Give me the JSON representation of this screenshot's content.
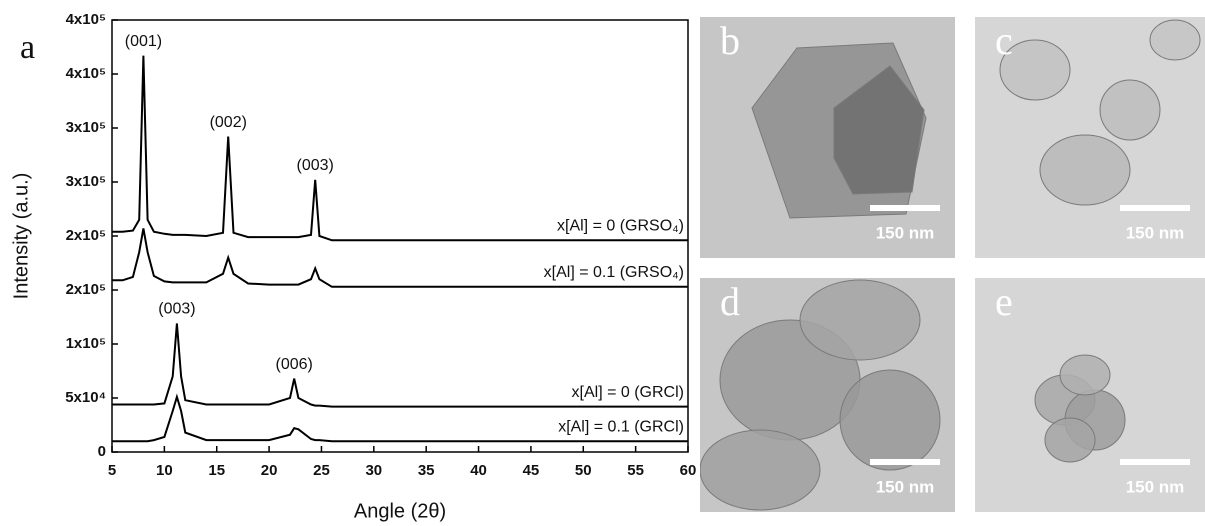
{
  "chart_data": {
    "type": "line",
    "panel_label": "a",
    "xlabel": "Angle (2θ)",
    "ylabel": "Intensity (a.u.)",
    "x": [
      5,
      6,
      7,
      7.6,
      8,
      8.4,
      9,
      10,
      10.8,
      11.2,
      11.6,
      12,
      14,
      15.6,
      16.1,
      16.6,
      18,
      20,
      22,
      22.4,
      22.8,
      24,
      24.4,
      24.8,
      26,
      30,
      40,
      50,
      60
    ],
    "series": [
      {
        "name": "x[Al] = 0 (GRSO₄)",
        "color": "#000000",
        "values": [
          204000,
          204000,
          205000,
          215000,
          367000,
          215000,
          204000,
          202000,
          201000,
          201000,
          201000,
          201000,
          200000,
          203000,
          292000,
          203000,
          199000,
          199000,
          199000,
          199000,
          199000,
          201000,
          252000,
          200000,
          196000,
          196000,
          196000,
          196000,
          196000
        ]
      },
      {
        "name": "x[Al] = 0.1 (GRSO₄)",
        "color": "#000000",
        "values": [
          159000,
          159000,
          162000,
          185000,
          207000,
          185000,
          163000,
          158000,
          157000,
          157000,
          157000,
          157000,
          157000,
          165000,
          180000,
          165000,
          156000,
          155000,
          155000,
          155000,
          155000,
          160000,
          170000,
          160000,
          153000,
          153000,
          153000,
          153000,
          153000
        ]
      },
      {
        "name": "x[Al] = 0 (GRCl)",
        "color": "#000000",
        "values": [
          44000,
          44000,
          44000,
          44000,
          44000,
          44000,
          44000,
          45000,
          70000,
          119000,
          70000,
          48000,
          44000,
          44000,
          44000,
          44000,
          44000,
          44000,
          50000,
          68000,
          50000,
          44000,
          43000,
          43000,
          42000,
          42000,
          42000,
          42000,
          42000
        ]
      },
      {
        "name": "x[Al] = 0.1 (GRCl)",
        "color": "#000000",
        "values": [
          10000,
          10000,
          10000,
          10000,
          10000,
          10000,
          11000,
          14000,
          38000,
          51000,
          38000,
          18000,
          11000,
          11000,
          11000,
          11000,
          11000,
          11000,
          16000,
          22000,
          21000,
          12000,
          11000,
          11000,
          10000,
          10000,
          10000,
          10000,
          10000
        ]
      }
    ],
    "annotations": [
      {
        "text": "(001)",
        "x": 8
      },
      {
        "text": "(002)",
        "x": 16.1
      },
      {
        "text": "(003)",
        "x": 24.4
      },
      {
        "text": "(003)",
        "x": 11.2
      },
      {
        "text": "(006)",
        "x": 22.4
      }
    ],
    "xlim": [
      5,
      60
    ],
    "xticks": [
      5,
      10,
      15,
      20,
      25,
      30,
      35,
      40,
      45,
      50,
      55,
      60
    ],
    "ylim": [
      0,
      400000
    ],
    "yticks": [
      {
        "value": 0,
        "label": "0"
      },
      {
        "value": 50000,
        "label": "5x10⁴"
      },
      {
        "value": 100000,
        "label": "1x10⁵"
      },
      {
        "value": 150000,
        "label": "2x10⁵"
      },
      {
        "value": 200000,
        "label": "2x10⁵"
      },
      {
        "value": 250000,
        "label": "3x10⁵"
      },
      {
        "value": 300000,
        "label": "3x10⁵"
      },
      {
        "value": 350000,
        "label": "4x10⁵"
      },
      {
        "value": 400000,
        "label": "4x10⁵"
      }
    ]
  },
  "panels": [
    {
      "label": "b",
      "scale": "150 nm"
    },
    {
      "label": "c",
      "scale": "150 nm"
    },
    {
      "label": "d",
      "scale": "150 nm"
    },
    {
      "label": "e",
      "scale": "150 nm"
    }
  ]
}
